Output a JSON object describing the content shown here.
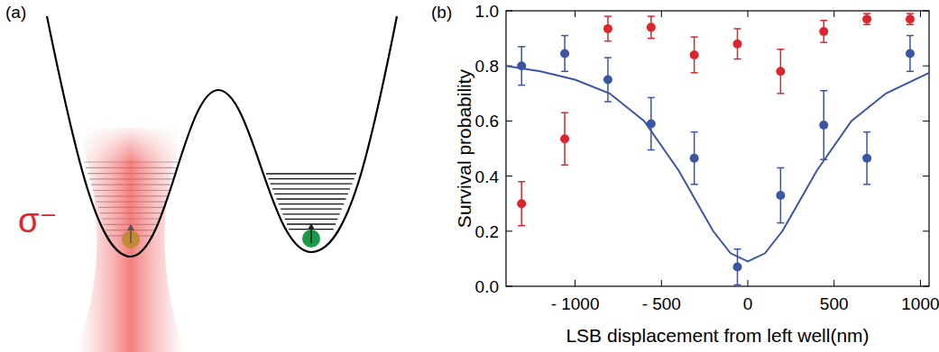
{
  "panel_labels": [
    "(a)",
    "(b)"
  ],
  "diagram": {
    "beam_label": "σ⁻"
  },
  "chart_data": {
    "type": "scatter",
    "x_label": "LSB displacement from left well(nm)",
    "y_label": "Survival probability",
    "xlim": [
      -1400,
      1050
    ],
    "ylim": [
      0,
      1
    ],
    "xticks": [
      {
        "value": -1000,
        "label": "- 1000"
      },
      {
        "value": -500,
        "label": "- 500"
      },
      0,
      500,
      1000
    ],
    "yticks": [
      {
        "value": 0,
        "label": "0.0"
      },
      0.2,
      0.4,
      0.6,
      0.8,
      {
        "value": 1,
        "label": "1.0"
      }
    ],
    "grid": false,
    "series": [
      {
        "type": "line",
        "color": "#3a55a4",
        "line_style": "solid",
        "x": [
          -1400,
          -1200,
          -1000,
          -800,
          -600,
          -400,
          -300,
          -200,
          -100,
          0,
          100,
          200,
          300,
          400,
          600,
          800,
          1050
        ],
        "values": [
          0.8,
          0.78,
          0.75,
          0.7,
          0.6,
          0.42,
          0.31,
          0.2,
          0.12,
          0.09,
          0.12,
          0.2,
          0.31,
          0.42,
          0.6,
          0.7,
          0.775
        ]
      },
      {
        "type": "scatter",
        "color": "#3a55a4",
        "marker": "circle",
        "x": [
          -1310,
          -1060,
          -810,
          -560,
          -310,
          -60,
          190,
          440,
          690,
          940
        ],
        "values": [
          0.8,
          0.845,
          0.75,
          0.59,
          0.465,
          0.07,
          0.33,
          0.585,
          0.465,
          0.845
        ],
        "errors": [
          0.07,
          0.065,
          0.08,
          0.095,
          0.095,
          0.065,
          0.1,
          0.125,
          0.095,
          0.065
        ]
      },
      {
        "type": "scatter",
        "color": "#e0242b",
        "marker": "circle",
        "x": [
          -1310,
          -1060,
          -810,
          -560,
          -310,
          -60,
          190,
          440,
          690,
          940
        ],
        "values": [
          0.3,
          0.535,
          0.935,
          0.94,
          0.84,
          0.88,
          0.78,
          0.925,
          0.97,
          0.97
        ],
        "errors": [
          0.08,
          0.095,
          0.045,
          0.04,
          0.065,
          0.055,
          0.08,
          0.04,
          0.02,
          0.02
        ]
      }
    ]
  }
}
